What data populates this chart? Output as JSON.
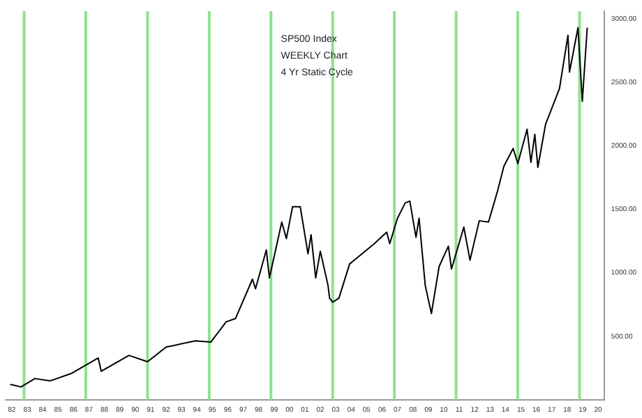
{
  "chart_data": {
    "type": "line",
    "annotations": [
      "SP500 Index",
      "WEEKLY Chart",
      "4 Yr Static Cycle"
    ],
    "series": [
      {
        "color": "#000000",
        "x": [
          1981.9,
          1982.6,
          1983.5,
          1984.5,
          1985.9,
          1987.6,
          1987.8,
          1989.6,
          1990.8,
          1992,
          1993.9,
          1994.9,
          1995.9,
          1996.5,
          1997.6,
          1997.8,
          1998.5,
          1998.7,
          1999.5,
          1999.8,
          2000.2,
          2000.7,
          2001.2,
          2001.4,
          2001.7,
          2002.0,
          2002.5,
          2002.6,
          2002.8,
          2003.2,
          2003.9,
          2004.5,
          2005.5,
          2006.3,
          2006.5,
          2007.0,
          2007.5,
          2007.8,
          2008.2,
          2008.4,
          2008.8,
          2009.2,
          2009.7,
          2010.3,
          2010.5,
          2011.3,
          2011.7,
          2012.3,
          2012.9,
          2013.5,
          2013.9,
          2014.5,
          2014.8,
          2015.4,
          2015.65,
          2015.9,
          2016.1,
          2016.6,
          2017.5,
          2018.05,
          2018.15,
          2018.7,
          2018.98,
          2019.3
        ],
        "values": [
          122,
          102,
          168,
          150,
          210,
          330,
          225,
          350,
          300,
          415,
          465,
          455,
          615,
          640,
          950,
          875,
          1180,
          960,
          1400,
          1270,
          1520,
          1520,
          1150,
          1300,
          960,
          1170,
          900,
          800,
          770,
          800,
          1070,
          1130,
          1230,
          1320,
          1230,
          1430,
          1550,
          1565,
          1280,
          1430,
          900,
          680,
          1050,
          1210,
          1030,
          1360,
          1100,
          1410,
          1400,
          1650,
          1840,
          1980,
          1860,
          2130,
          1870,
          2090,
          1830,
          2170,
          2450,
          2870,
          2580,
          2930,
          2350,
          2930
        ]
      }
    ],
    "xlim": [
      1981.6,
      2020.4
    ],
    "xticks": [
      {
        "value": 1982,
        "label": "82"
      },
      {
        "value": 1983,
        "label": "83"
      },
      {
        "value": 1984,
        "label": "84"
      },
      {
        "value": 1985,
        "label": "85"
      },
      {
        "value": 1986,
        "label": "86"
      },
      {
        "value": 1987,
        "label": "87"
      },
      {
        "value": 1988,
        "label": "88"
      },
      {
        "value": 1989,
        "label": "89"
      },
      {
        "value": 1990,
        "label": "90"
      },
      {
        "value": 1991,
        "label": "91"
      },
      {
        "value": 1992,
        "label": "92"
      },
      {
        "value": 1993,
        "label": "93"
      },
      {
        "value": 1994,
        "label": "94"
      },
      {
        "value": 1995,
        "label": "95"
      },
      {
        "value": 1996,
        "label": "96"
      },
      {
        "value": 1997,
        "label": "97"
      },
      {
        "value": 1998,
        "label": "98"
      },
      {
        "value": 1999,
        "label": "99"
      },
      {
        "value": 2000,
        "label": "00"
      },
      {
        "value": 2001,
        "label": "01"
      },
      {
        "value": 2002,
        "label": "02"
      },
      {
        "value": 2003,
        "label": "03"
      },
      {
        "value": 2004,
        "label": "04"
      },
      {
        "value": 2005,
        "label": "05"
      },
      {
        "value": 2006,
        "label": "06"
      },
      {
        "value": 2007,
        "label": "07"
      },
      {
        "value": 2008,
        "label": "08"
      },
      {
        "value": 2009,
        "label": "09"
      },
      {
        "value": 2010,
        "label": "10"
      },
      {
        "value": 2011,
        "label": "11"
      },
      {
        "value": 2012,
        "label": "12"
      },
      {
        "value": 2013,
        "label": "13"
      },
      {
        "value": 2014,
        "label": "14"
      },
      {
        "value": 2015,
        "label": "15"
      },
      {
        "value": 2016,
        "label": "16"
      },
      {
        "value": 2017,
        "label": "17"
      },
      {
        "value": 2018,
        "label": "18"
      },
      {
        "value": 2019,
        "label": "19"
      },
      {
        "value": 2020,
        "label": "20"
      }
    ],
    "ylim": [
      0,
      3060
    ],
    "yticks": [
      {
        "value": 500,
        "label": "500.00"
      },
      {
        "value": 1000,
        "label": "1000.00"
      },
      {
        "value": 1500,
        "label": "1500.00"
      },
      {
        "value": 2000,
        "label": "2000.00"
      },
      {
        "value": 2500,
        "label": "2500.00"
      },
      {
        "value": 3000,
        "label": "3000.00"
      }
    ],
    "ref_lines": [
      {
        "axis": "x",
        "value": 1982.8,
        "color": "#90e090"
      },
      {
        "axis": "x",
        "value": 1986.8,
        "color": "#90e090"
      },
      {
        "axis": "x",
        "value": 1990.8,
        "color": "#90e090"
      },
      {
        "axis": "x",
        "value": 1994.8,
        "color": "#90e090"
      },
      {
        "axis": "x",
        "value": 1998.8,
        "color": "#90e090"
      },
      {
        "axis": "x",
        "value": 2002.8,
        "color": "#90e090"
      },
      {
        "axis": "x",
        "value": 2006.8,
        "color": "#90e090"
      },
      {
        "axis": "x",
        "value": 2010.8,
        "color": "#90e090"
      },
      {
        "axis": "x",
        "value": 2014.8,
        "color": "#90e090"
      },
      {
        "axis": "x",
        "value": 2018.8,
        "color": "#90e090"
      }
    ],
    "grid": false,
    "legend": false,
    "marker": "none",
    "line_style": "solid"
  }
}
